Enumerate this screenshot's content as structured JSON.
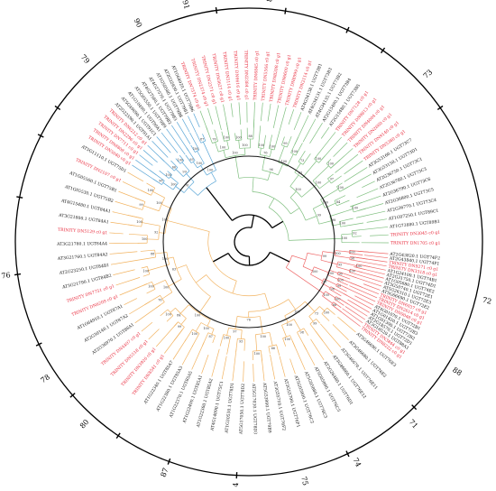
{
  "colors": {
    "line_black": "#000000",
    "clade_orange": "#f2b360",
    "clade_red": "#ef6a6a",
    "clade_green": "#7fbf7f",
    "clade_blue": "#5aa6d6",
    "label_black": "#111111",
    "label_red": "#e8283a"
  },
  "tree": {
    "group_labels": [
      "76",
      "78",
      "80",
      "87",
      "84",
      "75",
      "74",
      "71",
      "88",
      "72",
      "73",
      "89",
      "91",
      "90",
      "79"
    ],
    "clades": [
      {
        "name": "orange",
        "color_key": "clade_orange",
        "leaves": [
          {
            "t": "AT3G46690.1 UGT76E3",
            "c": "black"
          },
          {
            "t": "AT3G46680.1 UGT76E2",
            "c": "black"
          },
          {
            "t": "AT3G46670.1 UGT76E11",
            "c": "black"
          },
          {
            "t": "AT3G46660.1 UGT76E12",
            "c": "black"
          },
          {
            "t": "AT2G26480.1 UGT76D1",
            "c": "black"
          },
          {
            "t": "AT5G05890.1 UGT76C5",
            "c": "black"
          },
          {
            "t": "AT5G05880.1 UGT76C3",
            "c": "black"
          },
          {
            "t": "AT5G05900.1 UGT76C2",
            "c": "black"
          },
          {
            "t": "AT3G55700.1 UGT76F1",
            "c": "black"
          },
          {
            "t": "AT3G55710.1 UGT76F2",
            "c": "black"
          },
          {
            "t": "AT5G53990.1 UGT79B9",
            "c": "black"
          },
          {
            "t": "AT5G17030.1 UGT78D3",
            "c": "black"
          },
          {
            "t": "AT5G17050.1 UGT78D2",
            "c": "black"
          },
          {
            "t": "AT1G30530.1 UGT78D1",
            "c": "black"
          },
          {
            "t": "AT4G14090.1 UGT75C1",
            "c": "black"
          },
          {
            "t": "AT1G22360.1 UGT85A2",
            "c": "black"
          },
          {
            "t": "AT1G22400.1 UGT85A1",
            "c": "black"
          },
          {
            "t": "AT1G22370.1 UGT85A5",
            "c": "black"
          },
          {
            "t": "AT1G22380.1 UGT85A3",
            "c": "black"
          },
          {
            "t": "AT1G22340.1 UGT85A7",
            "c": "black"
          },
          {
            "t": "TRINITY DN8541 c0 g1",
            "c": "red"
          },
          {
            "t": "TRINITY DN3920 c0 g1",
            "c": "red"
          },
          {
            "t": "TRINITY DN5518 c0 g1",
            "c": "red"
          },
          {
            "t": "TRINITY DN4407 c0 g1",
            "c": "red"
          },
          {
            "t": "AT2G36970.1 UGT86A1",
            "c": "black"
          },
          {
            "t": "AT2G30140.1 UGT87A2",
            "c": "black"
          },
          {
            "t": "AT1G64910.1 UGT87A1",
            "c": "black"
          },
          {
            "t": "TRINITY DN6209 c0 g1",
            "c": "red"
          },
          {
            "t": "TRINITY DN7751 c0 g1",
            "c": "red"
          },
          {
            "t": "AT3G21790.1 UGT84B2",
            "c": "black"
          },
          {
            "t": "AT2G23250.1 UGT84B1",
            "c": "black"
          },
          {
            "t": "AT3G21760.1 UGT84A2",
            "c": "black"
          },
          {
            "t": "AT3G21780.1 UGT84A4",
            "c": "black"
          },
          {
            "t": "TRINITY DN5129 c0 g1",
            "c": "red"
          },
          {
            "t": "AT3G21800.1 UGT84A1",
            "c": "black"
          },
          {
            "t": "AT4G15480.1 UGT84A1",
            "c": "black"
          },
          {
            "t": "AT1G05530.1 UGT75B2",
            "c": "black"
          },
          {
            "t": "AT1G05560.1 UGT75B1",
            "c": "black"
          },
          {
            "t": "TRINITY DN2107 c0 g1",
            "c": "red"
          },
          {
            "t": "AT5G11110.1 UGT75D1",
            "c": "black"
          }
        ]
      },
      {
        "name": "red",
        "color_key": "clade_red",
        "leaves": [
          {
            "t": "AT2G43820.1 UGT74F2",
            "c": "black"
          },
          {
            "t": "AT2G43840.1 UGT74F1",
            "c": "black"
          },
          {
            "t": "TRINITY DN9271 c0 g1",
            "c": "red"
          },
          {
            "t": "TRINITY DN3318 c0 g1",
            "c": "red"
          },
          {
            "t": "AT1G24100.1 UGT74B1",
            "c": "black"
          },
          {
            "t": "AT2G31750.1 UGT74D1",
            "c": "black"
          },
          {
            "t": "AT1G05680.1 UGT74E2",
            "c": "black"
          },
          {
            "t": "AT3G50740.1 UGT72E1",
            "c": "black"
          },
          {
            "t": "AT5G26310.1 UGT72E3",
            "c": "black"
          },
          {
            "t": "AT5G66690.1 UGT72E2",
            "c": "black"
          },
          {
            "t": "TRINITY DN6037 c0 g1",
            "c": "red"
          },
          {
            "t": "TRINITY DN2614 c0 g1",
            "c": "red"
          },
          {
            "t": "TRINITY DN9048 c0 g1",
            "c": "red"
          },
          {
            "t": "AT4G01070.1 UGT72B1",
            "c": "black"
          },
          {
            "t": "AT1G01420.1 UGT72B3",
            "c": "black"
          },
          {
            "t": "AT1G01390.1 UGT72B2",
            "c": "black"
          },
          {
            "t": "AT2G18570.1 UGT72D1",
            "c": "black"
          },
          {
            "t": "AT3G16520.1 UGT88A1",
            "c": "black"
          },
          {
            "t": "TRINITY DN3844 c0 g1",
            "c": "red"
          },
          {
            "t": "TRINITY DN8222 c0 g1",
            "c": "red"
          }
        ]
      },
      {
        "name": "green",
        "color_key": "clade_green",
        "leaves": [
          {
            "t": "TRINITY DN7374 c0 g1",
            "c": "red"
          },
          {
            "t": "TRINITY DN2374 c0 g1",
            "c": "red"
          },
          {
            "t": "TRINITY DN2371 c0 g1",
            "c": "red"
          },
          {
            "t": "TRINITY DN3627 c0 g1",
            "c": "red"
          },
          {
            "t": "TRINITY DN5114 c0 g1",
            "c": "red"
          },
          {
            "t": "TRINITY DN6616 c0 g1",
            "c": "red"
          },
          {
            "t": "TRINITY DN2384 c0 g1",
            "c": "red"
          },
          {
            "t": "TRINITY DN6845 c0 g1",
            "c": "red"
          },
          {
            "t": "TRINITY DN5566 c0 g1",
            "c": "red"
          },
          {
            "t": "TRINITY DN8208 c0 g1",
            "c": "red"
          },
          {
            "t": "TRINITY DN6600 c0 g1",
            "c": "red"
          },
          {
            "t": "TRINITY DN8999 c0 g1",
            "c": "red"
          },
          {
            "t": "TRINITY DN2114 c0 g1",
            "c": "red"
          },
          {
            "t": "AT4G34138.1 UGT73B1",
            "c": "black"
          },
          {
            "t": "AT4G34131.1 UGT73B3",
            "c": "black"
          },
          {
            "t": "AT4G34135.1 UGT73B2",
            "c": "black"
          },
          {
            "t": "AT2G15490.1 UGT73B4",
            "c": "black"
          },
          {
            "t": "AT2G15480.1 UGT73B5",
            "c": "black"
          },
          {
            "t": "TRINITY DN7128 c0 g1",
            "c": "red"
          },
          {
            "t": "TRINITY DN9813 c0 g1",
            "c": "red"
          },
          {
            "t": "TRINITY DN4004 c0 g1",
            "c": "red"
          },
          {
            "t": "TRINITY DN2660 c0 g1",
            "c": "red"
          },
          {
            "t": "TRINITY DN9140 c0 g1",
            "c": "red"
          },
          {
            "t": "TRINITY DN5380 c0 g1",
            "c": "red"
          },
          {
            "t": "AT3G53160.1 UGT73C7",
            "c": "black"
          },
          {
            "t": "AT3G53150.1 UGT73D1",
            "c": "black"
          },
          {
            "t": "AT2G36750.1 UGT73C1",
            "c": "black"
          },
          {
            "t": "AT2G36780.1 UGT73C3",
            "c": "black"
          },
          {
            "t": "AT2G36790.1 UGT73C6",
            "c": "black"
          },
          {
            "t": "AT2G36800.1 UGT73C5",
            "c": "black"
          },
          {
            "t": "AT2G36770.1 UGT73C4",
            "c": "black"
          },
          {
            "t": "AT1G07250.1 UGT89C1",
            "c": "black"
          },
          {
            "t": "AT1G73880.1 UGT89B1",
            "c": "black"
          },
          {
            "t": "TRINITY DN3045 c0 g1",
            "c": "red"
          },
          {
            "t": "TRINITY DN1705 c0 g1",
            "c": "red"
          }
        ]
      },
      {
        "name": "blue",
        "color_key": "clade_blue",
        "leaves": [
          {
            "t": "TRINITY DN5040 c0 g1",
            "c": "red"
          },
          {
            "t": "TRINITY DN8808 c0 g1",
            "c": "red"
          },
          {
            "t": "TRINITY DN7711 c0 g1",
            "c": "red"
          },
          {
            "t": "TRINITY DN2296 c0 g1",
            "c": "red"
          },
          {
            "t": "TRINITY DN6212 c0 g1",
            "c": "red"
          },
          {
            "t": "AT2G22590.1 UGT91A1",
            "c": "black"
          },
          {
            "t": "AT5G49690.1 UGT91C1",
            "c": "black"
          },
          {
            "t": "AT1G10400.1 UGT90A1",
            "c": "black"
          },
          {
            "t": "AT5G65550.1 UGT79B9",
            "c": "black"
          },
          {
            "t": "AT4G27560.1 UGT79B2",
            "c": "black"
          },
          {
            "t": "AT4G27570.1 UGT79B3",
            "c": "black"
          },
          {
            "t": "AT1G50580.1 UGT79B8",
            "c": "black"
          },
          {
            "t": "AT2G22930.1 UGT79B1",
            "c": "black"
          },
          {
            "t": "AT1G64920.1 UGT79B6",
            "c": "black"
          }
        ]
      }
    ],
    "bootstrap_values": [
      "100",
      "99",
      "98",
      "100",
      "66",
      "100",
      "95",
      "100",
      "87",
      "100",
      "99",
      "100",
      "76",
      "100",
      "100",
      "88",
      "100",
      "100",
      "99",
      "100",
      "73",
      "100",
      "100",
      "97",
      "100",
      "84",
      "100",
      "100",
      "92",
      "100",
      "100",
      "76",
      "100",
      "63",
      "100",
      "100",
      "98",
      "100",
      "100",
      "96"
    ]
  }
}
